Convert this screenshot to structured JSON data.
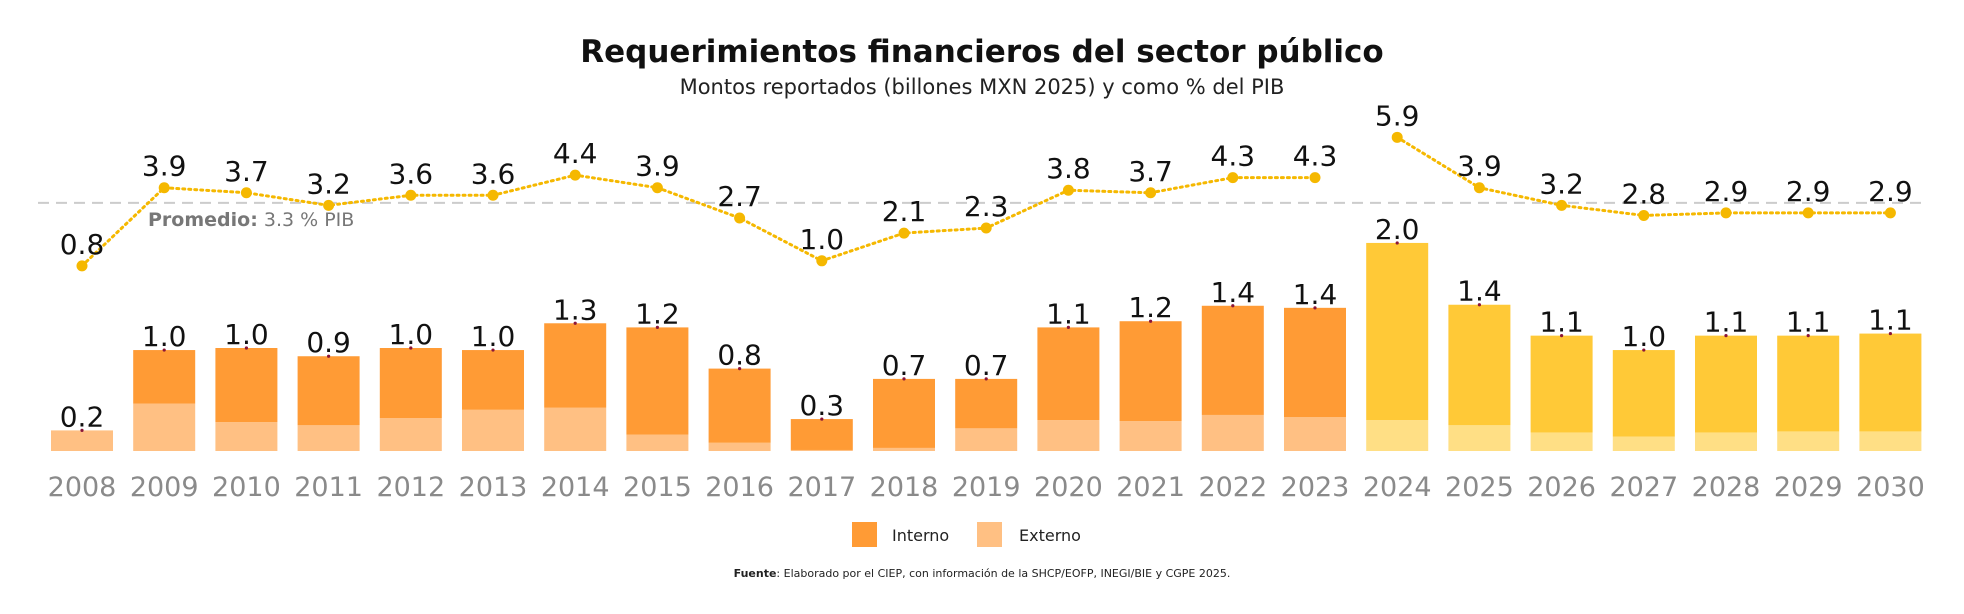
{
  "chart_data": {
    "type": "bar",
    "title": "Requerimientos financieros del sector público",
    "subtitle": "Montos reportados (billones MXN 2025) y como % del PIB",
    "categories": [
      "2008",
      "2009",
      "2010",
      "2011",
      "2012",
      "2013",
      "2014",
      "2015",
      "2016",
      "2017",
      "2018",
      "2019",
      "2020",
      "2021",
      "2022",
      "2023",
      "2024",
      "2025",
      "2026",
      "2027",
      "2028",
      "2029",
      "2030"
    ],
    "totals": [
      0.2,
      1.0,
      1.0,
      0.9,
      1.0,
      1.0,
      1.3,
      1.2,
      0.8,
      0.3,
      0.7,
      0.7,
      1.1,
      1.2,
      1.4,
      1.4,
      2.0,
      1.4,
      1.1,
      1.0,
      1.1,
      1.1,
      1.1
    ],
    "totals_labels": [
      "0.2",
      "1.0",
      "1.0",
      "0.9",
      "1.0",
      "1.0",
      "1.3",
      "1.2",
      "0.8",
      "0.3",
      "0.7",
      "0.7",
      "1.1",
      "1.2",
      "1.4",
      "1.4",
      "2.0",
      "1.4",
      "1.1",
      "1.0",
      "1.1",
      "1.1",
      "1.1"
    ],
    "series": [
      {
        "name": "Interno",
        "values": [
          0.0,
          0.52,
          0.72,
          0.67,
          0.68,
          0.58,
          0.82,
          1.04,
          0.72,
          0.3,
          0.67,
          0.48,
          0.9,
          0.97,
          1.06,
          1.06,
          1.72,
          1.17,
          0.94,
          0.84,
          0.94,
          0.93,
          0.95
        ]
      },
      {
        "name": "Externo",
        "values": [
          0.2,
          0.46,
          0.28,
          0.25,
          0.32,
          0.4,
          0.42,
          0.16,
          0.08,
          0.01,
          0.03,
          0.22,
          0.3,
          0.29,
          0.35,
          0.33,
          0.3,
          0.25,
          0.18,
          0.14,
          0.18,
          0.19,
          0.19
        ]
      }
    ],
    "pct_pib": [
      0.8,
      3.9,
      3.7,
      3.2,
      3.6,
      3.6,
      4.4,
      3.9,
      2.7,
      1.0,
      2.1,
      2.3,
      3.8,
      3.7,
      4.3,
      4.3,
      5.9,
      3.9,
      3.2,
      2.8,
      2.9,
      2.9,
      2.9
    ],
    "pct_pib_labels": [
      "0.8",
      "3.9",
      "3.7",
      "3.2",
      "3.6",
      "3.6",
      "4.4",
      "3.9",
      "2.7",
      "1.0",
      "2.1",
      "2.3",
      "3.8",
      "3.7",
      "4.3",
      "4.3",
      "5.9",
      "3.9",
      "3.2",
      "2.8",
      "2.9",
      "2.9",
      "2.9"
    ],
    "promedio": {
      "label": "Promedio:",
      "value_text": "3.3 % PIB",
      "value": 3.3
    },
    "projection_from": "2024",
    "legend": [
      {
        "name": "Interno"
      },
      {
        "name": "Externo"
      }
    ],
    "legend_placement": "bottom-center",
    "source_label": "Fuente",
    "source_text": ": Elaborado por el CIEP, con información de la SHCP/EOFP, INEGI/BIE y CGPE 2025.",
    "grid": false,
    "colors": {
      "interno": "#ff9b35",
      "externo": "#ffc083",
      "interno_projection": "#ffc937",
      "externo_projection": "#ffdf85",
      "line": "#f5b800",
      "average_line": "#cccccc",
      "marker_dot": "#8b1538"
    }
  }
}
